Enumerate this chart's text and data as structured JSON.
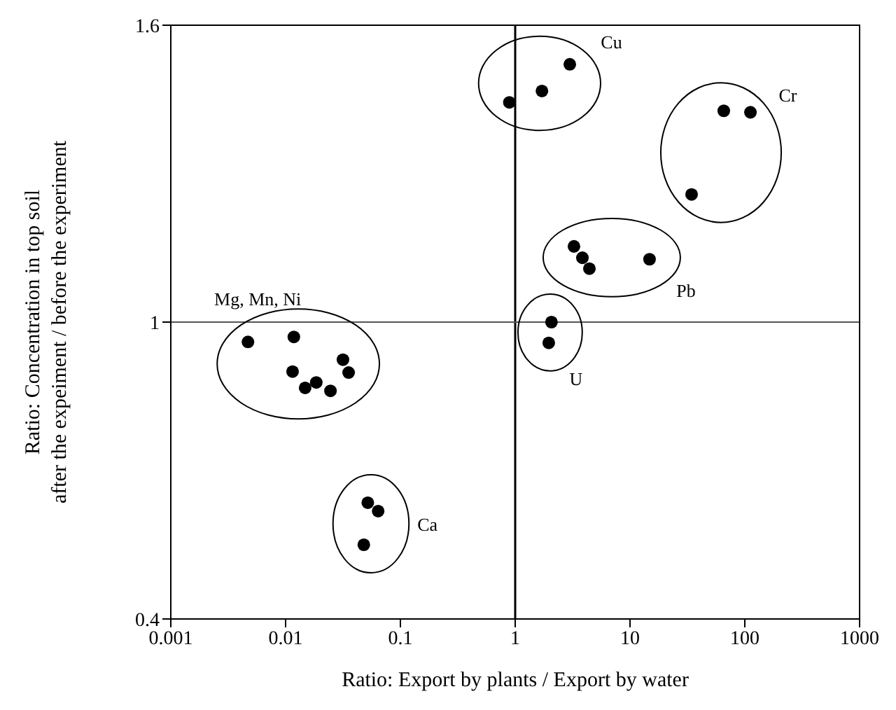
{
  "chart_data": {
    "type": "scatter",
    "xlabel": "Ratio: Export by plants / Export by water",
    "ylabel": "Ratio: Concentration in top soil\nafter the expeiment / before the experiment",
    "series": [
      {
        "name": "Mg, Mn, Ni",
        "color": "#000000",
        "x": [
          0.0047,
          0.0118,
          0.0115,
          0.0148,
          0.0185,
          0.0246,
          0.0316,
          0.0354
        ],
        "values": [
          0.96,
          0.97,
          0.9,
          0.867,
          0.878,
          0.861,
          0.924,
          0.898
        ]
      },
      {
        "name": "Ca",
        "color": "#000000",
        "x": [
          0.052,
          0.064,
          0.048
        ],
        "values": [
          0.635,
          0.618,
          0.55
        ]
      },
      {
        "name": "Cu",
        "color": "#000000",
        "x": [
          0.89,
          1.71,
          2.99
        ],
        "values": [
          1.444,
          1.467,
          1.521
        ]
      },
      {
        "name": "Cr",
        "color": "#000000",
        "x": [
          65.6,
          112,
          34.4
        ],
        "values": [
          1.427,
          1.424,
          1.258
        ]
      },
      {
        "name": "Pb",
        "color": "#000000",
        "x": [
          3.25,
          3.85,
          4.43,
          14.8
        ],
        "values": [
          1.153,
          1.13,
          1.108,
          1.127
        ]
      },
      {
        "name": "U",
        "color": "#000000",
        "x": [
          2.07,
          1.96
        ],
        "values": [
          1.0,
          0.958
        ]
      }
    ],
    "log": "x",
    "xlim": [
      0.001,
      1000
    ],
    "xticks": [
      0.001,
      0.01,
      0.1,
      1,
      10,
      100,
      1000
    ],
    "ylim": [
      0.4,
      1.6
    ],
    "yticks": [
      0.4,
      1,
      1.6
    ],
    "ref_lines": [
      {
        "axis": "x",
        "value": 1,
        "color": "#000000"
      },
      {
        "axis": "y",
        "value": 1,
        "color": "#555555"
      }
    ],
    "grid": false,
    "legend": false,
    "marker": "circle"
  }
}
